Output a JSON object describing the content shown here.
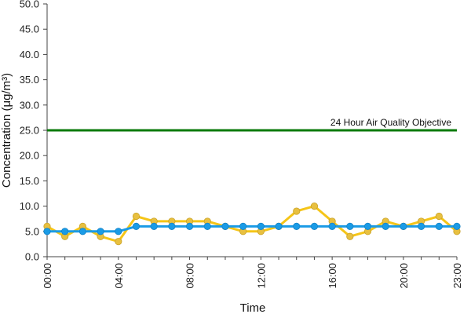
{
  "chart_data": {
    "type": "line",
    "xlabel": "Time",
    "ylabel": "Concentration (μg/m³)",
    "ylim": [
      0,
      50
    ],
    "yticks": [
      "0.0",
      "5.0",
      "10.0",
      "15.0",
      "20.0",
      "25.0",
      "30.0",
      "35.0",
      "40.0",
      "45.0",
      "50.0"
    ],
    "xticks": [
      "00:00",
      "04:00",
      "08:00",
      "12:00",
      "16:00",
      "20:00",
      "23:00"
    ],
    "xtick_hours": [
      0,
      4,
      8,
      12,
      16,
      20,
      23
    ],
    "x": [
      0,
      1,
      2,
      3,
      4,
      5,
      6,
      7,
      8,
      9,
      10,
      11,
      12,
      13,
      14,
      15,
      16,
      17,
      18,
      19,
      20,
      21,
      22,
      23
    ],
    "series": [
      {
        "values": [
          6,
          4,
          6,
          4,
          3,
          8,
          7,
          7,
          7,
          7,
          6,
          5,
          5,
          6,
          9,
          10,
          7,
          4,
          5,
          7,
          6,
          7,
          8,
          5
        ],
        "color": "#f5c518",
        "marker_color": "#e8c040"
      },
      {
        "values": [
          5,
          5,
          5,
          5,
          5,
          6,
          6,
          6,
          6,
          6,
          6,
          6,
          6,
          6,
          6,
          6,
          6,
          6,
          6,
          6,
          6,
          6,
          6,
          6
        ],
        "color": "#1a9be6",
        "marker_color": "#1a9be6"
      }
    ],
    "reference_line": {
      "value": 25,
      "label": "24 Hour Air Quality Objective",
      "color": "#0a7a0a"
    },
    "grid": false
  }
}
